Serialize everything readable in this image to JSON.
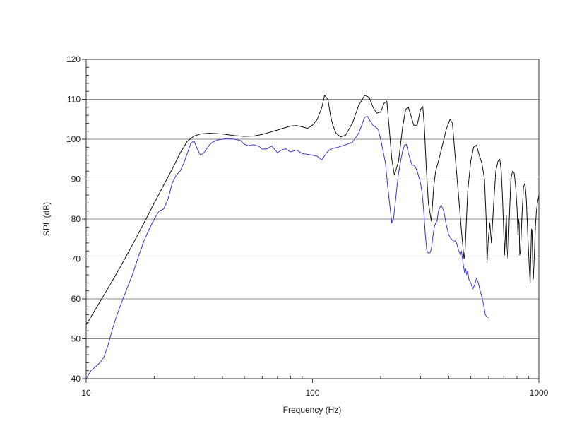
{
  "chart_data": {
    "type": "line",
    "title": "",
    "xlabel": "Frequency (Hz)",
    "ylabel": "SPL (dB)",
    "x_scale": "log",
    "xlim": [
      10,
      1000
    ],
    "ylim": [
      40,
      120
    ],
    "x_tick_labels": [
      "10",
      "100",
      "1000"
    ],
    "y_tick_labels": [
      "40",
      "50",
      "60",
      "70",
      "80",
      "90",
      "100",
      "110",
      "120"
    ],
    "grid": "horizontal",
    "legend": "none",
    "series": [
      {
        "color": "#111111",
        "x": [
          10,
          12,
          14,
          16,
          18,
          20,
          22,
          24,
          26,
          28,
          30,
          32,
          35,
          40,
          45,
          50,
          55,
          60,
          70,
          80,
          85,
          90,
          95,
          100,
          105,
          110,
          113,
          117,
          120,
          123,
          127,
          133,
          140,
          150,
          160,
          170,
          178,
          185,
          192,
          200,
          207,
          213,
          218,
          224,
          230,
          240,
          250,
          258,
          265,
          272,
          280,
          290,
          300,
          307,
          312,
          318,
          325,
          335,
          343,
          350,
          360,
          375,
          390,
          405,
          415,
          425,
          440,
          455,
          467,
          472,
          477,
          485,
          500,
          515,
          530,
          545,
          560,
          575,
          585,
          590,
          598,
          607,
          617,
          630,
          645,
          660,
          672,
          682,
          690,
          698,
          705,
          712,
          718,
          723,
          730,
          740,
          752,
          765,
          778,
          790,
          802,
          808,
          813,
          818,
          823,
          830,
          842,
          855,
          868,
          880,
          893,
          905,
          915,
          922,
          928,
          933,
          938,
          945,
          955,
          965,
          975,
          985,
          1000
        ],
        "y": [
          53.5,
          61,
          67.5,
          73.5,
          79,
          84,
          88.5,
          92.5,
          96.5,
          99.5,
          100.8,
          101.3,
          101.5,
          101.3,
          100.9,
          100.7,
          100.8,
          101.2,
          102.3,
          103.3,
          103.4,
          103.1,
          102.7,
          103.5,
          105,
          108,
          111,
          110,
          106,
          103.5,
          101.5,
          100.6,
          101,
          104,
          108.5,
          111,
          110.5,
          108,
          106.5,
          106.8,
          109,
          109.5,
          103,
          95,
          91,
          94.5,
          103,
          107.5,
          108,
          106,
          103.5,
          103.5,
          107.5,
          108.2,
          103,
          93,
          84,
          79.5,
          88,
          92,
          94.5,
          98.5,
          102.5,
          105,
          104,
          97,
          87,
          77,
          70,
          72,
          78,
          87,
          94.5,
          98,
          98.5,
          96,
          94,
          90,
          80,
          69,
          75,
          79,
          74,
          83,
          92,
          94.5,
          95,
          92,
          86,
          78,
          71,
          77,
          81,
          73,
          70,
          80,
          90,
          92,
          91.5,
          88,
          82,
          76,
          80,
          79,
          71,
          72,
          81,
          88,
          89,
          85,
          76,
          69,
          64,
          72,
          77.5,
          77,
          70,
          65,
          71,
          78,
          82,
          84,
          86
        ]
      },
      {
        "color": "#3a3ad0",
        "x": [
          10,
          10.5,
          11,
          11.5,
          12,
          12.5,
          13,
          13.5,
          14,
          15,
          16,
          17,
          18,
          19,
          20,
          21,
          22,
          23,
          24,
          25,
          26,
          27,
          28,
          29,
          30,
          31,
          32,
          33,
          34,
          35,
          36,
          38,
          40,
          42,
          45,
          48,
          50,
          52,
          55,
          58,
          60,
          63,
          66,
          70,
          73,
          76,
          80,
          85,
          90,
          95,
          100,
          105,
          110,
          115,
          120,
          125,
          130,
          140,
          150,
          160,
          165,
          170,
          175,
          180,
          185,
          190,
          195,
          200,
          205,
          210,
          215,
          220,
          224,
          228,
          232,
          236,
          240,
          245,
          250,
          255,
          260,
          265,
          270,
          275,
          280,
          285,
          290,
          295,
          300,
          305,
          310,
          315,
          320,
          325,
          330,
          335,
          340,
          345,
          350,
          355,
          360,
          370,
          380,
          390,
          400,
          410,
          420,
          430,
          440,
          450,
          455,
          460,
          465,
          470,
          475,
          480,
          485,
          490,
          495,
          500,
          510,
          520,
          530,
          540,
          550,
          560,
          570,
          580,
          590,
          600
        ],
        "y": [
          40,
          42,
          43,
          44,
          45.5,
          48.5,
          52,
          55,
          57.5,
          62,
          66,
          70.5,
          74.5,
          77.5,
          80,
          82,
          82.5,
          85,
          89,
          91,
          92,
          94,
          96.5,
          99,
          99.5,
          97.5,
          96,
          96.5,
          97.5,
          98.5,
          99.2,
          99.8,
          100,
          100.2,
          100,
          99.7,
          98.7,
          98.4,
          98.6,
          98.2,
          97.5,
          97.6,
          98.3,
          96.6,
          97.3,
          97.6,
          96.8,
          97.3,
          96.4,
          96.2,
          96,
          95.7,
          94.8,
          96.5,
          97.5,
          97.8,
          98,
          98.6,
          99.2,
          101.5,
          103.5,
          105.5,
          105.7,
          104.5,
          103.5,
          103,
          102.5,
          100,
          97,
          94,
          88,
          83,
          79,
          80,
          84,
          88,
          91.5,
          94.5,
          97,
          98.5,
          98.7,
          96.5,
          95,
          93.5,
          93.5,
          93,
          92,
          90.5,
          89,
          86.5,
          82,
          76,
          72,
          71.5,
          71.5,
          72.5,
          75.5,
          78,
          79,
          79.5,
          82,
          83.5,
          82,
          78.5,
          76,
          75,
          74.5,
          74.5,
          72.5,
          71,
          72,
          70,
          68,
          66.5,
          67.5,
          66,
          67,
          65,
          64.5,
          64,
          62.5,
          63.5,
          65.2,
          64,
          62,
          60.5,
          58.5,
          56,
          55.5,
          55.3
        ]
      }
    ]
  }
}
